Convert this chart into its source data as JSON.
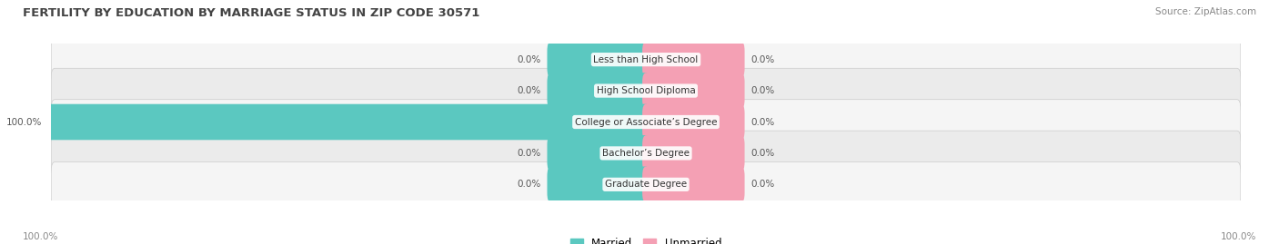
{
  "title": "FERTILITY BY EDUCATION BY MARRIAGE STATUS IN ZIP CODE 30571",
  "source": "Source: ZipAtlas.com",
  "categories": [
    "Less than High School",
    "High School Diploma",
    "College or Associate’s Degree",
    "Bachelor’s Degree",
    "Graduate Degree"
  ],
  "married": [
    0.0,
    0.0,
    100.0,
    0.0,
    0.0
  ],
  "unmarried": [
    0.0,
    0.0,
    0.0,
    0.0,
    0.0
  ],
  "married_color": "#5BC8C0",
  "unmarried_color": "#F4A0B4",
  "row_bg_light": "#F5F5F5",
  "row_bg_dark": "#EBEBEB",
  "label_color": "#555555",
  "title_color": "#444444",
  "source_color": "#888888",
  "axis_label_color": "#888888",
  "bottom_left_label": "100.0%",
  "bottom_right_label": "100.0%",
  "default_bar_pct": 8.0
}
